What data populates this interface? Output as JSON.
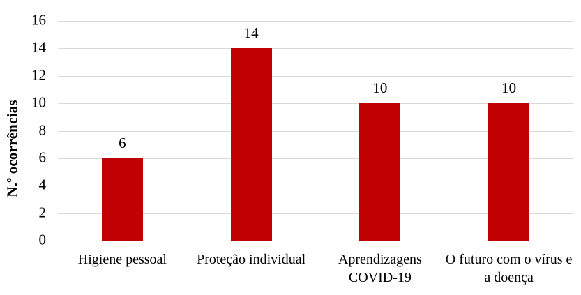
{
  "chart_data": {
    "type": "bar",
    "title": "",
    "xlabel": "",
    "ylabel": "N.º ocorrências",
    "categories": [
      "Higiene pessoal",
      "Proteção individual",
      "Aprendizagens COVID-19",
      "O futuro com o vírus e a doença"
    ],
    "values": [
      6,
      14,
      10,
      10
    ],
    "data_labels": [
      "6",
      "14",
      "10",
      "10"
    ],
    "yticks": [
      0,
      2,
      4,
      6,
      8,
      10,
      12,
      14,
      16
    ],
    "ylim": [
      0,
      16
    ],
    "grid": "horizontal",
    "legend_position": "none",
    "bar_color": "#c00000",
    "gridline_color": "#d9d9d9",
    "text_color": "#000000",
    "background_color": "#ffffff"
  }
}
